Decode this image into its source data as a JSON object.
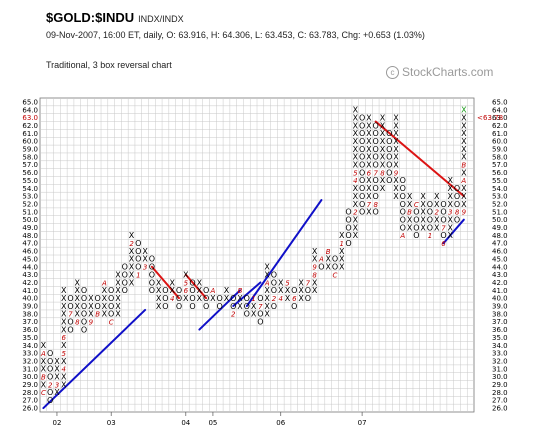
{
  "header": {
    "symbol": "$GOLD:$INDU",
    "exchange": "INDX/INDX",
    "quote": "09-Nov-2007, 16:00 ET, daily, O: 63.916, H: 64.306, L: 63.453, C: 63.783, Chg: +0.653 (1.03%)",
    "chart_type": "Traditional, 3 box reversal chart",
    "logo": "StockCharts.com",
    "logo_mark": "c"
  },
  "chart_data": {
    "type": "point-and-figure",
    "box_size": 1,
    "reversal": 3,
    "ylim": [
      26,
      65
    ],
    "y_ticks": [
      "26.0",
      "27.0",
      "28.0",
      "29.0",
      "30.0",
      "31.0",
      "32.0",
      "33.0",
      "34.0",
      "35.0",
      "36.0",
      "37.0",
      "38.0",
      "39.0",
      "40.0",
      "41.0",
      "42.0",
      "43.0",
      "44.0",
      "45.0",
      "46.0",
      "47.0",
      "48.0",
      "49.0",
      "50.0",
      "51.0",
      "52.0",
      "53.0",
      "54.0",
      "55.0",
      "56.0",
      "57.0",
      "58.0",
      "59.0",
      "60.0",
      "61.0",
      "62.0",
      "63.0",
      "64.0",
      "65.0"
    ],
    "current_price_label": "63.78",
    "current_marker": "<",
    "year_labels": [
      {
        "text": "02",
        "col": 2
      },
      {
        "text": "03",
        "col": 10
      },
      {
        "text": "04",
        "col": 21
      },
      {
        "text": "05",
        "col": 25
      },
      {
        "text": "06",
        "col": 35
      },
      {
        "text": "07",
        "col": 47
      }
    ],
    "columns": [
      {
        "type": "X",
        "low": 28,
        "high": 34,
        "marks": {
          "28": "C",
          "30": "B",
          "33": "A"
        }
      },
      {
        "type": "O",
        "low": 27,
        "high": 33,
        "marks": {
          "29": "2"
        }
      },
      {
        "type": "X",
        "low": 28,
        "high": 32,
        "marks": {
          "29": "3"
        }
      },
      {
        "type": "X",
        "low": 29,
        "high": 41,
        "marks": {
          "31": "4",
          "33": "5",
          "35": "6"
        }
      },
      {
        "type": "O",
        "low": 36,
        "high": 40,
        "marks": {
          "38": "7"
        }
      },
      {
        "type": "X",
        "low": 37,
        "high": 42,
        "marks": {
          "37": "8"
        }
      },
      {
        "type": "O",
        "low": 36,
        "high": 41,
        "marks": {}
      },
      {
        "type": "X",
        "low": 37,
        "high": 40,
        "marks": {
          "37": "9"
        }
      },
      {
        "type": "O",
        "low": 38,
        "high": 40,
        "marks": {
          "38": "B"
        }
      },
      {
        "type": "X",
        "low": 38,
        "high": 42,
        "marks": {
          "42": "A"
        }
      },
      {
        "type": "O",
        "low": 37,
        "high": 41,
        "marks": {
          "37": "C"
        }
      },
      {
        "type": "X",
        "low": 38,
        "high": 43,
        "marks": {}
      },
      {
        "type": "O",
        "low": 41,
        "high": 44,
        "marks": {}
      },
      {
        "type": "X",
        "low": 42,
        "high": 48,
        "marks": {
          "47": "2"
        }
      },
      {
        "type": "O",
        "low": 43,
        "high": 47,
        "marks": {
          "43": "1"
        }
      },
      {
        "type": "X",
        "low": 44,
        "high": 46,
        "marks": {
          "44": "3"
        }
      },
      {
        "type": "O",
        "low": 41,
        "high": 45,
        "marks": {}
      },
      {
        "type": "X",
        "low": 39,
        "high": 42,
        "marks": {}
      },
      {
        "type": "O",
        "low": 39,
        "high": 41,
        "marks": {}
      },
      {
        "type": "X",
        "low": 40,
        "high": 42,
        "marks": {
          "40": "4"
        }
      },
      {
        "type": "O",
        "low": 39,
        "high": 41,
        "marks": {}
      },
      {
        "type": "X",
        "low": 40,
        "high": 43,
        "marks": {
          "42": "5",
          "41": "6"
        }
      },
      {
        "type": "O",
        "low": 39,
        "high": 42,
        "marks": {}
      },
      {
        "type": "X",
        "low": 40,
        "high": 42,
        "marks": {}
      },
      {
        "type": "O",
        "low": 39,
        "high": 41,
        "marks": {}
      },
      {
        "type": "X",
        "low": 40,
        "high": 41,
        "marks": {
          "41": "A"
        }
      },
      {
        "type": "O",
        "low": 39,
        "high": 40,
        "marks": {}
      },
      {
        "type": "X",
        "low": 40,
        "high": 41,
        "marks": {}
      },
      {
        "type": "O",
        "low": 38,
        "high": 40,
        "marks": {
          "38": "2"
        }
      },
      {
        "type": "X",
        "low": 39,
        "high": 41,
        "marks": {
          "41": "B"
        }
      },
      {
        "type": "O",
        "low": 38,
        "high": 40,
        "marks": {}
      },
      {
        "type": "X",
        "low": 38,
        "high": 40,
        "marks": {
          "40": "1"
        }
      },
      {
        "type": "O",
        "low": 37,
        "high": 40,
        "marks": {
          "39": "7"
        }
      },
      {
        "type": "X",
        "low": 38,
        "high": 44,
        "marks": {
          "42": "A"
        }
      },
      {
        "type": "O",
        "low": 39,
        "high": 43,
        "marks": {
          "40": "2"
        }
      },
      {
        "type": "X",
        "low": 40,
        "high": 42,
        "marks": {
          "40": "4"
        }
      },
      {
        "type": "X",
        "low": 40,
        "high": 42,
        "marks": {
          "42": "5"
        }
      },
      {
        "type": "O",
        "low": 39,
        "high": 41,
        "marks": {
          "40": "6"
        }
      },
      {
        "type": "X",
        "low": 40,
        "high": 42,
        "marks": {}
      },
      {
        "type": "O",
        "low": 40,
        "high": 42,
        "marks": {
          "42": "7"
        }
      },
      {
        "type": "X",
        "low": 41,
        "high": 46,
        "marks": {
          "43": "8",
          "44": "9"
        }
      },
      {
        "type": "O",
        "low": 44,
        "high": 45,
        "marks": {
          "45": "A"
        }
      },
      {
        "type": "X",
        "low": 44,
        "high": 46,
        "marks": {
          "46": "B"
        }
      },
      {
        "type": "O",
        "low": 43,
        "high": 45,
        "marks": {
          "43": "C"
        }
      },
      {
        "type": "X",
        "low": 44,
        "high": 48,
        "marks": {
          "47": "1"
        }
      },
      {
        "type": "O",
        "low": 47,
        "high": 51,
        "marks": {}
      },
      {
        "type": "X",
        "low": 48,
        "high": 64,
        "marks": {
          "51": "2",
          "55": "4",
          "56": "5"
        }
      },
      {
        "type": "O",
        "low": 51,
        "high": 63,
        "marks": {}
      },
      {
        "type": "X",
        "low": 51,
        "high": 63,
        "marks": {
          "56": "6",
          "52": "7"
        }
      },
      {
        "type": "O",
        "low": 51,
        "high": 62,
        "marks": {
          "56": "7",
          "52": "8"
        }
      },
      {
        "type": "X",
        "low": 54,
        "high": 63,
        "marks": {
          "56": "8"
        }
      },
      {
        "type": "O",
        "low": 55,
        "high": 61,
        "marks": {}
      },
      {
        "type": "X",
        "low": 53,
        "high": 63,
        "marks": {
          "56": "9"
        }
      },
      {
        "type": "O",
        "low": 48,
        "high": 55,
        "marks": {
          "48": "A"
        }
      },
      {
        "type": "X",
        "low": 49,
        "high": 53,
        "marks": {
          "51": "B"
        }
      },
      {
        "type": "O",
        "low": 48,
        "high": 52,
        "marks": {
          "52": "C"
        }
      },
      {
        "type": "X",
        "low": 49,
        "high": 53,
        "marks": {}
      },
      {
        "type": "O",
        "low": 48,
        "high": 52,
        "marks": {
          "48": "1"
        }
      },
      {
        "type": "X",
        "low": 49,
        "high": 53,
        "marks": {
          "51": "2"
        }
      },
      {
        "type": "O",
        "low": 47,
        "high": 52,
        "marks": {
          "47": "6",
          "49": "7"
        }
      },
      {
        "type": "X",
        "low": 48,
        "high": 55,
        "marks": {
          "51": "3"
        }
      },
      {
        "type": "O",
        "low": 50,
        "high": 54,
        "marks": {
          "51": "8"
        }
      },
      {
        "type": "X",
        "low": 51,
        "high": 64,
        "marks": {
          "51": "9",
          "55": "A",
          "57": "B"
        }
      }
    ],
    "trend_lines": [
      {
        "kind": "bullish-support",
        "color": "#1010c8",
        "from": {
          "col": 0,
          "y": 26
        },
        "to": {
          "col": 15,
          "y": 38.5
        }
      },
      {
        "kind": "bullish-support",
        "color": "#1010c8",
        "from": {
          "col": 23,
          "y": 36
        },
        "to": {
          "col": 29,
          "y": 41
        }
      },
      {
        "kind": "bullish-support",
        "color": "#1010c8",
        "from": {
          "col": 28,
          "y": 39
        },
        "to": {
          "col": 32,
          "y": 42
        }
      },
      {
        "kind": "bullish-support",
        "color": "#1010c8",
        "from": {
          "col": 30,
          "y": 39
        },
        "to": {
          "col": 41,
          "y": 52.5
        }
      },
      {
        "kind": "bullish-support",
        "color": "#1010c8",
        "from": {
          "col": 59,
          "y": 47
        },
        "to": {
          "col": 62,
          "y": 50
        }
      },
      {
        "kind": "bearish-resistance",
        "color": "#dc1414",
        "from": {
          "col": 16,
          "y": 44
        },
        "to": {
          "col": 20,
          "y": 40
        }
      },
      {
        "kind": "bearish-resistance",
        "color": "#dc1414",
        "from": {
          "col": 21,
          "y": 43
        },
        "to": {
          "col": 24,
          "y": 40
        }
      },
      {
        "kind": "bearish-resistance",
        "color": "#dc1414",
        "from": {
          "col": 49,
          "y": 62.5
        },
        "to": {
          "col": 62,
          "y": 53
        }
      }
    ],
    "colors": {
      "up": "#000000",
      "down": "#000000",
      "month": "#c00000",
      "last_box": "#1a9a1a",
      "price_label": "#c00000",
      "grid": "#c8c8c8",
      "blue_line": "#1010c8",
      "red_line": "#dc1414"
    }
  }
}
